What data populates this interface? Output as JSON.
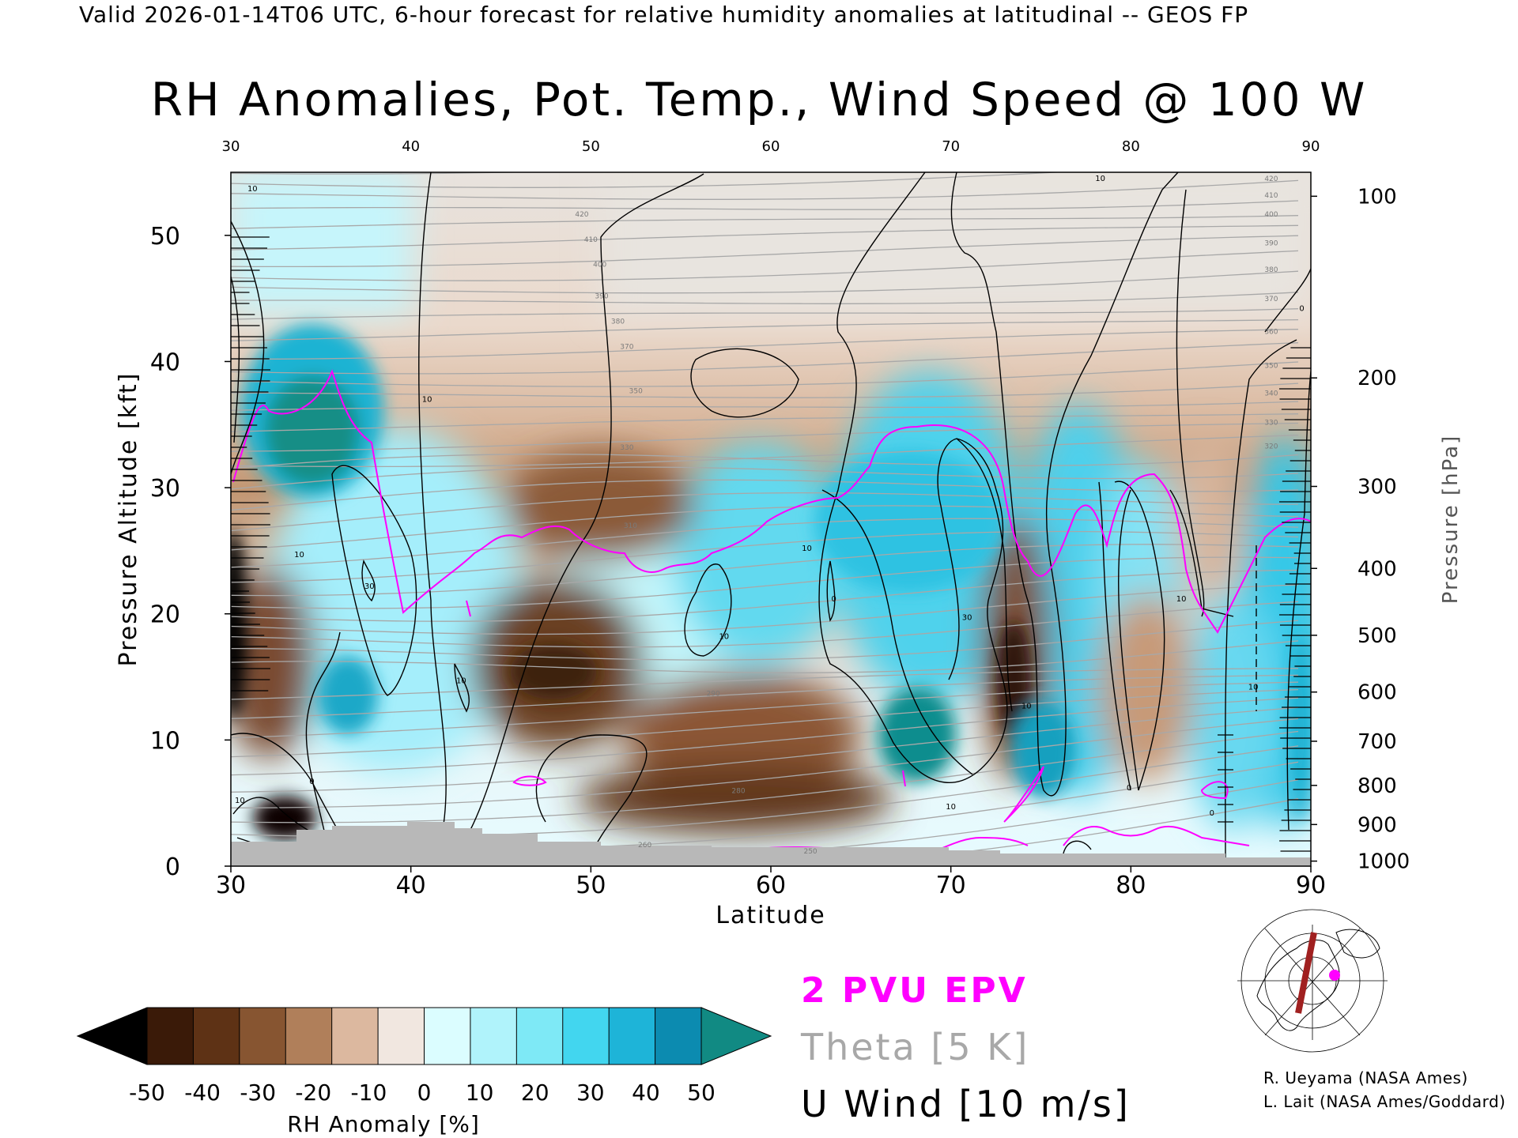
{
  "header": {
    "valid_line": "Valid 2026-01-14T06 UTC, 6-hour forecast for relative humidity anomalies at latitudinal -- GEOS FP",
    "title": "RH Anomalies, Pot. Temp., Wind Speed @ 100 W"
  },
  "legend": {
    "epv_label": "2 PVU EPV",
    "theta_label": "Theta [5 K]",
    "wind_label": "U Wind [10 m/s]",
    "epv_color": "#ff00ff",
    "theta_color": "#a8a8a8",
    "wind_color": "#000000"
  },
  "colorbar": {
    "label": "RH Anomaly [%]",
    "ticks": [
      "-50",
      "-40",
      "-30",
      "-20",
      "-10",
      "0",
      "10",
      "20",
      "30",
      "40",
      "50"
    ],
    "colors": [
      "#000000",
      "#3a1a08",
      "#5e3215",
      "#875531",
      "#b07f5a",
      "#dcb89f",
      "#f1e7e0",
      "#dbfdff",
      "#b0f3fb",
      "#7ee9f6",
      "#42d6ef",
      "#1eb4d8",
      "#0c8bb0",
      "#118a83"
    ]
  },
  "credits": [
    "R. Ueyama (NASA Ames)",
    "L. Lait (NASA Ames/Goddard)"
  ],
  "chart_data": {
    "type": "heatmap",
    "title": "RH Anomalies, Pot. Temp., Wind Speed @ 100 W",
    "xlabel": "Latitude",
    "ylabel": "Pressure Altitude [kft]",
    "y2label": "Pressure [hPa]",
    "xlim": [
      30,
      90
    ],
    "ylim": [
      0,
      55
    ],
    "x_ticks": [
      30,
      40,
      50,
      60,
      70,
      80,
      90
    ],
    "y_ticks": [
      0,
      10,
      20,
      30,
      40,
      50
    ],
    "pressure_ticks": [
      {
        "hPa": 100,
        "kft": 53.1
      },
      {
        "hPa": 200,
        "kft": 38.7
      },
      {
        "hPa": 300,
        "kft": 30.1
      },
      {
        "hPa": 400,
        "kft": 23.6
      },
      {
        "hPa": 500,
        "kft": 18.3
      },
      {
        "hPa": 600,
        "kft": 13.8
      },
      {
        "hPa": 700,
        "kft": 9.9
      },
      {
        "hPa": 800,
        "kft": 6.4
      },
      {
        "hPa": 900,
        "kft": 3.3
      },
      {
        "hPa": 1000,
        "kft": 0.4
      }
    ],
    "theta_labels": [
      {
        "text": "420",
        "lat": 49.5,
        "kft": 51.5
      },
      {
        "text": "410",
        "lat": 50.0,
        "kft": 49.5
      },
      {
        "text": "400",
        "lat": 50.5,
        "kft": 47.5
      },
      {
        "text": "390",
        "lat": 50.6,
        "kft": 45.0
      },
      {
        "text": "380",
        "lat": 51.5,
        "kft": 43.0
      },
      {
        "text": "370",
        "lat": 52.0,
        "kft": 41.0
      },
      {
        "text": "350",
        "lat": 52.5,
        "kft": 37.5
      },
      {
        "text": "330",
        "lat": 52.0,
        "kft": 33.0
      },
      {
        "text": "310",
        "lat": 52.2,
        "kft": 26.8
      },
      {
        "text": "290",
        "lat": 56.8,
        "kft": 13.5
      },
      {
        "text": "280",
        "lat": 58.2,
        "kft": 5.8
      },
      {
        "text": "260",
        "lat": 53.0,
        "kft": 1.5
      },
      {
        "text": "250",
        "lat": 62.2,
        "kft": 1.0
      },
      {
        "text": "420",
        "lat": 87.8,
        "kft": 54.3
      },
      {
        "text": "410",
        "lat": 87.8,
        "kft": 53.0
      },
      {
        "text": "400",
        "lat": 87.8,
        "kft": 51.5
      },
      {
        "text": "390",
        "lat": 87.8,
        "kft": 49.2
      },
      {
        "text": "380",
        "lat": 87.8,
        "kft": 47.1
      },
      {
        "text": "370",
        "lat": 87.8,
        "kft": 44.8
      },
      {
        "text": "360",
        "lat": 87.8,
        "kft": 42.2
      },
      {
        "text": "350",
        "lat": 87.8,
        "kft": 39.5
      },
      {
        "text": "340",
        "lat": 87.8,
        "kft": 37.3
      },
      {
        "text": "330",
        "lat": 87.8,
        "kft": 35.0
      },
      {
        "text": "320",
        "lat": 87.8,
        "kft": 33.1
      }
    ],
    "wind_labels": [
      {
        "text": "10",
        "lat": 31.2,
        "kft": 53.5
      },
      {
        "text": "10",
        "lat": 40.9,
        "kft": 36.8
      },
      {
        "text": "10",
        "lat": 33.8,
        "kft": 24.5
      },
      {
        "text": "30",
        "lat": 37.7,
        "kft": 22.0
      },
      {
        "text": "10",
        "lat": 42.8,
        "kft": 14.5
      },
      {
        "text": "0",
        "lat": 63.5,
        "kft": 21.0
      },
      {
        "text": "10",
        "lat": 62.0,
        "kft": 25.0
      },
      {
        "text": "10",
        "lat": 57.4,
        "kft": 18.0
      },
      {
        "text": "30",
        "lat": 70.9,
        "kft": 19.5
      },
      {
        "text": "10",
        "lat": 74.2,
        "kft": 12.5
      },
      {
        "text": "10",
        "lat": 70.0,
        "kft": 4.5
      },
      {
        "text": "10",
        "lat": 78.3,
        "kft": 54.3
      },
      {
        "text": "0",
        "lat": 79.9,
        "kft": 6.0
      },
      {
        "text": "10",
        "lat": 82.8,
        "kft": 21.0
      },
      {
        "text": "10",
        "lat": 86.8,
        "kft": 14.0
      },
      {
        "text": "0",
        "lat": 89.5,
        "kft": 44.0
      },
      {
        "text": "0",
        "lat": 84.5,
        "kft": 4.0
      },
      {
        "text": "10",
        "lat": 30.5,
        "kft": 5.0
      },
      {
        "text": "0",
        "lat": 34.5,
        "kft": 6.5
      }
    ],
    "rh_anomaly_regions": [
      {
        "lat": 34.8,
        "kft": 38.5,
        "rh": 50
      },
      {
        "lat": 68.5,
        "kft": 29.5,
        "rh": 50
      },
      {
        "lat": 36.0,
        "kft": 14.0,
        "rh": 45
      },
      {
        "lat": 30.3,
        "kft": 23.0,
        "rh": -50
      },
      {
        "lat": 33.5,
        "kft": 2.5,
        "rh": -50
      },
      {
        "lat": 48.0,
        "kft": 17.0,
        "rh": -35
      },
      {
        "lat": 73.5,
        "kft": 17.0,
        "rh": -45
      },
      {
        "lat": 62.0,
        "kft": 6.5,
        "rh": -35
      },
      {
        "lat": 58.0,
        "kft": 18.0,
        "rh": 35
      },
      {
        "lat": 77.0,
        "kft": 14.0,
        "rh": 40
      },
      {
        "lat": 88.5,
        "kft": 15.0,
        "rh": 40
      },
      {
        "lat": 60.0,
        "kft": 45.0,
        "rh": -10
      }
    ]
  }
}
